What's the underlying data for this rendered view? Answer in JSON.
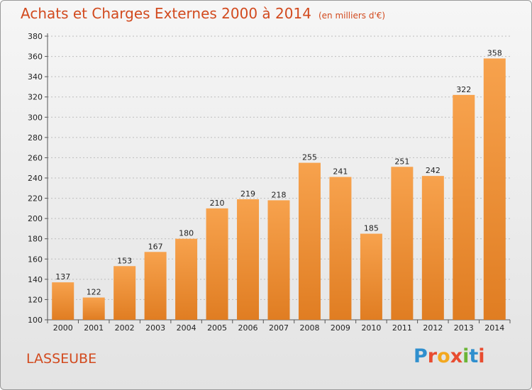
{
  "title": "Achats et Charges Externes 2000 à 2014",
  "unit": "(en milliers d'€)",
  "commune": "LASSEUBE",
  "logo": "Proxiti",
  "colors": {
    "title": "#d24a1e",
    "bar_light": "#f7a24d",
    "bar_dark": "#e07d22",
    "logo_letters": [
      "#2f8fce",
      "#e84c30",
      "#f3a81f",
      "#e84c30",
      "#6bb536",
      "#2f8fce",
      "#e84c30"
    ]
  },
  "chart_data": {
    "type": "bar",
    "categories": [
      "2000",
      "2001",
      "2002",
      "2003",
      "2004",
      "2005",
      "2006",
      "2007",
      "2008",
      "2009",
      "2010",
      "2011",
      "2012",
      "2013",
      "2014"
    ],
    "values": [
      137,
      122,
      153,
      167,
      180,
      210,
      219,
      218,
      255,
      241,
      185,
      251,
      242,
      322,
      358
    ],
    "ylim": [
      100,
      380
    ],
    "yticks": [
      100,
      120,
      140,
      160,
      180,
      200,
      220,
      240,
      260,
      280,
      300,
      320,
      340,
      360,
      380
    ],
    "grid": true,
    "legend": "none"
  }
}
